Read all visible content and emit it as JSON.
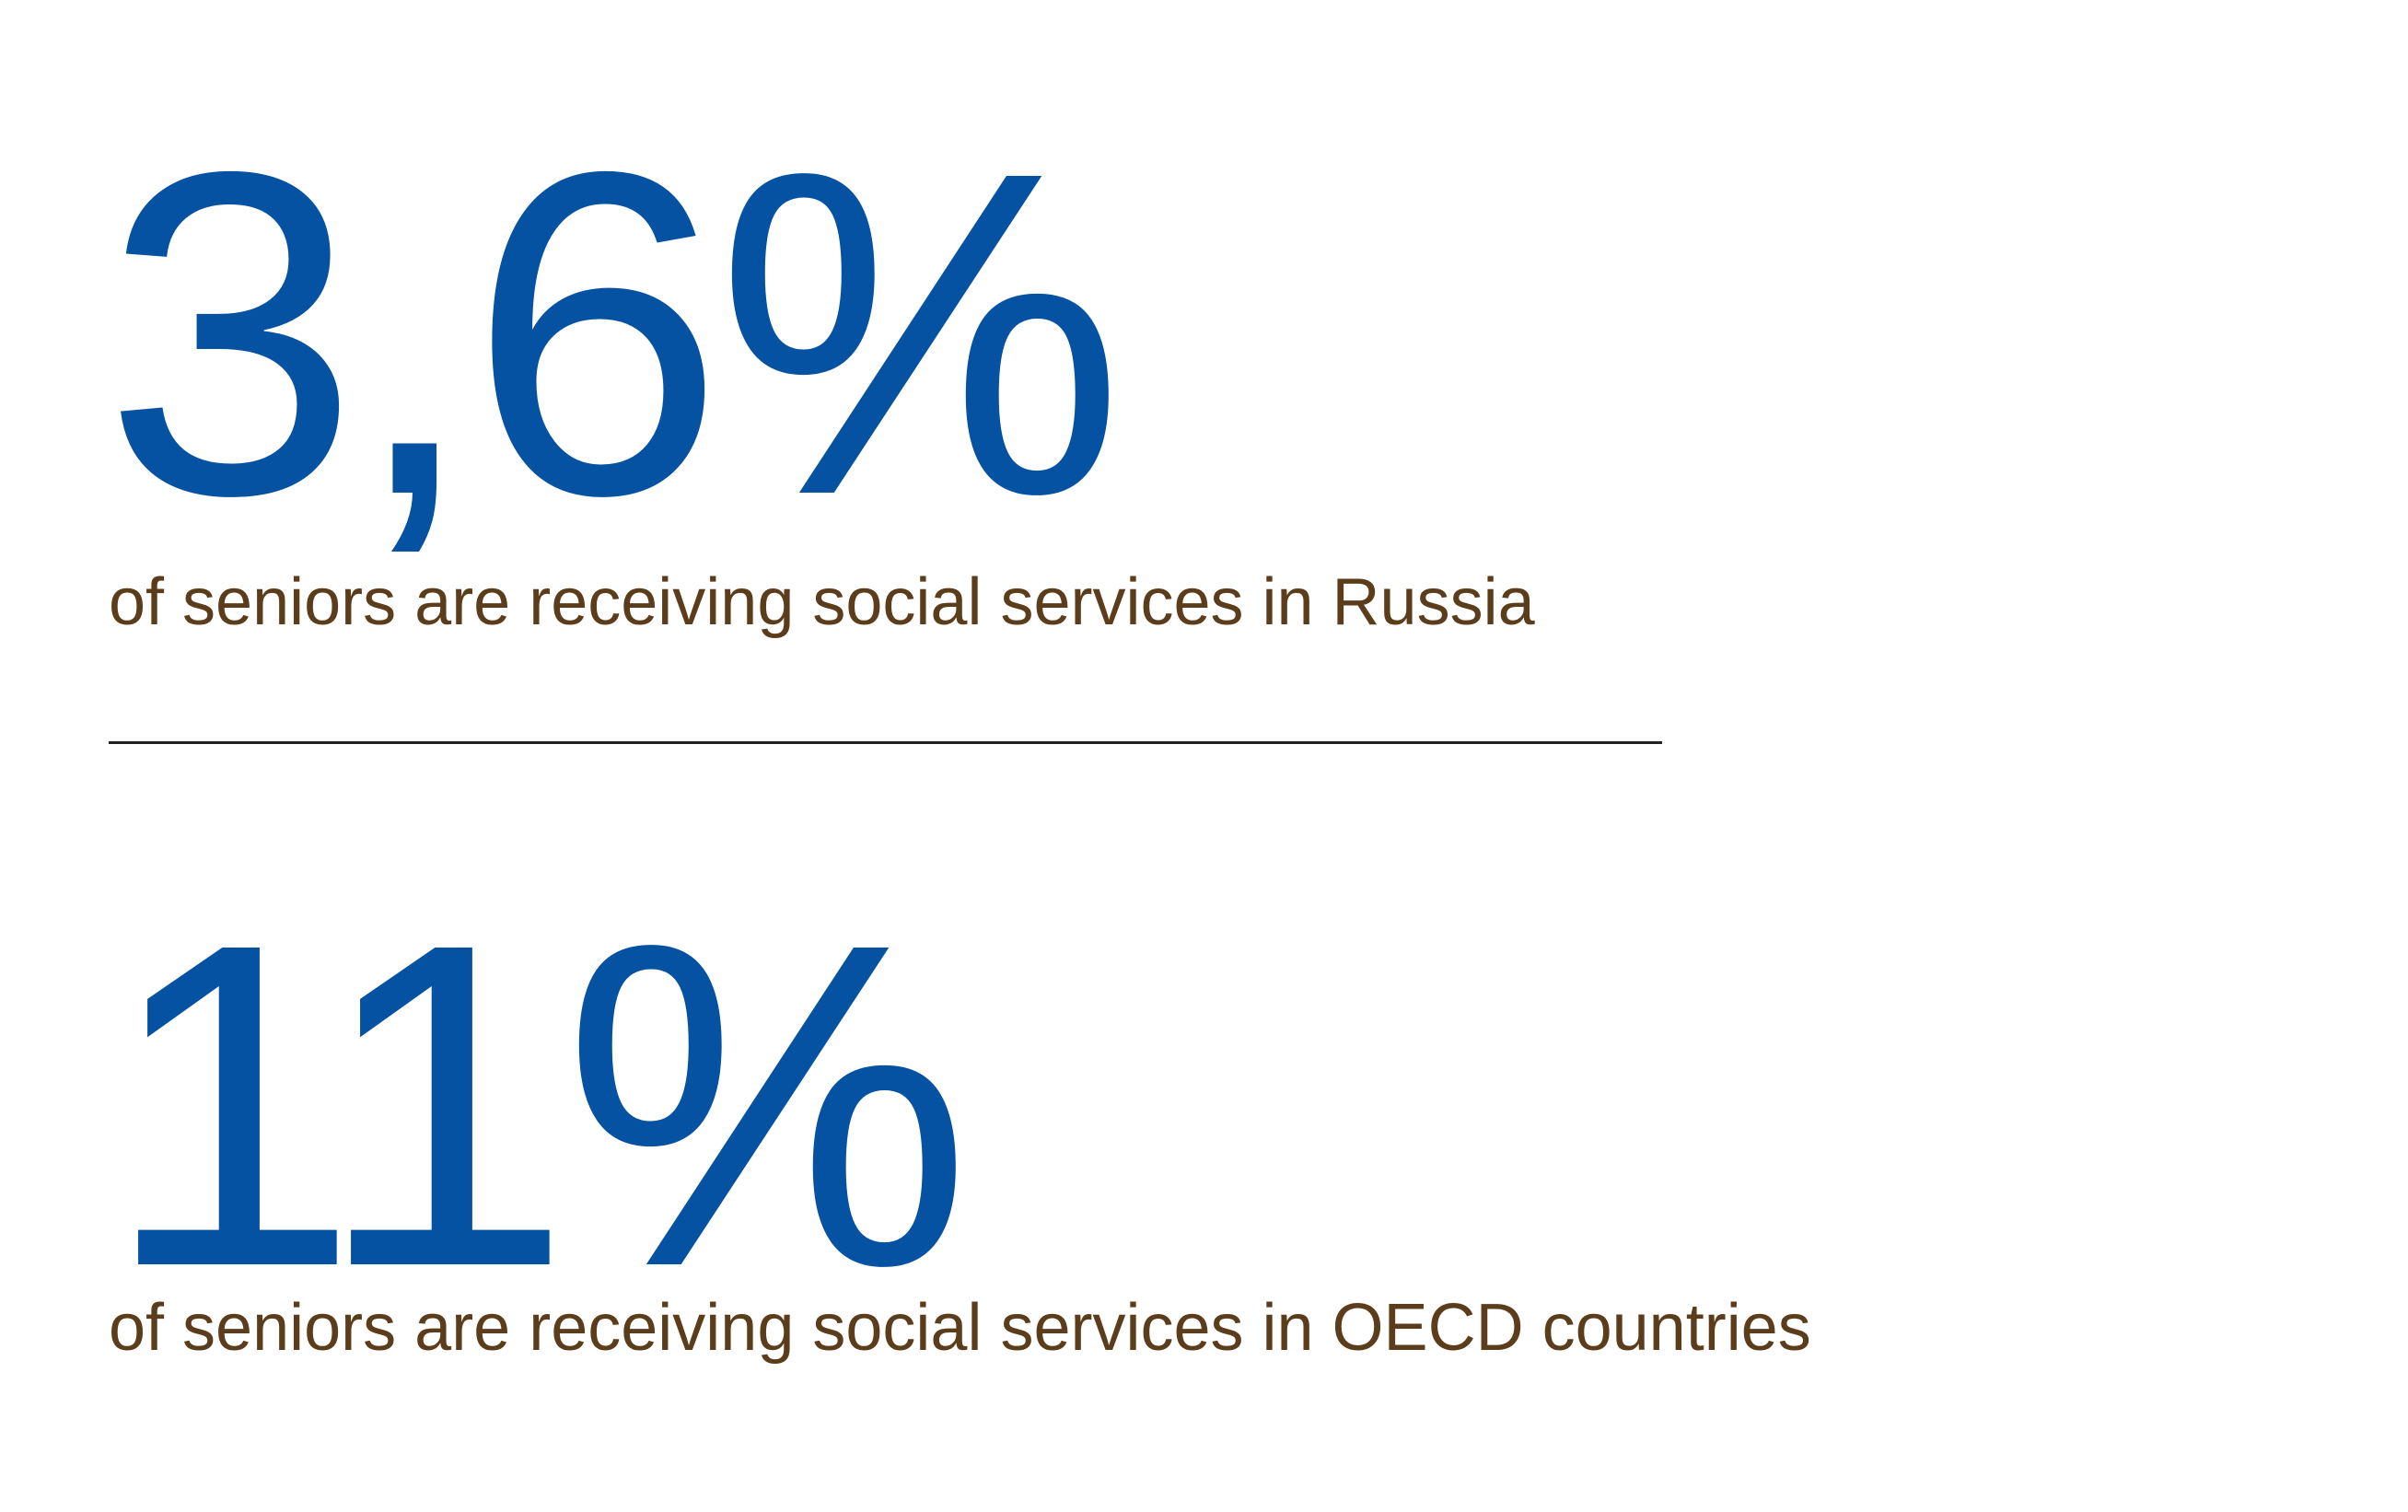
{
  "stats": [
    {
      "value": "3,6%",
      "caption": "of seniors are receiving social services in Russia"
    },
    {
      "value": "11%",
      "caption": "of seniors are receiving social services in OECD countries"
    }
  ],
  "colors": {
    "number": "#0551a2",
    "caption": "#5b3d1c",
    "divider": "#222222"
  }
}
